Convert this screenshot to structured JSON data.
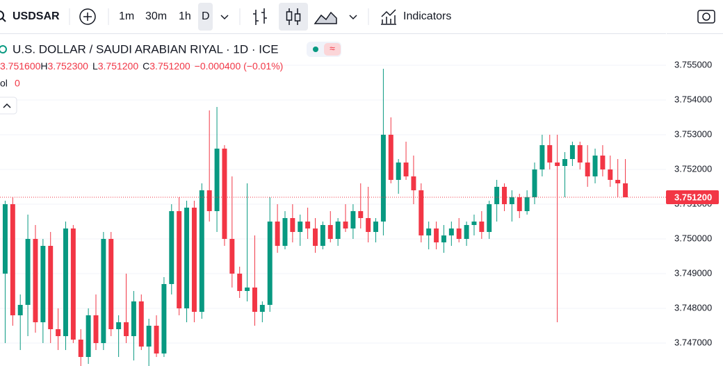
{
  "toolbar": {
    "symbol": "USDSAR",
    "intervals": [
      "1m",
      "30m",
      "1h",
      "D"
    ],
    "indicators": "Indicators"
  },
  "legend": {
    "title": "U.S. DOLLAR / SAUDI ARABIAN RIYAL · 1D · ICE",
    "open": "3.751600",
    "high_label": "H",
    "high": "3.752300",
    "low_label": "L",
    "low": "3.751200",
    "close_label": "C",
    "close": "3.751200",
    "change": "−0.000400 (−0.01%)",
    "volume_label": "ol",
    "volume": "0"
  },
  "chart_data": {
    "type": "candlestick",
    "up_color": "#089981",
    "down_color": "#f23645",
    "ylim": [
      3.74634,
      3.75592
    ],
    "yticks": [
      {
        "value": 3.755,
        "label": "3.755000"
      },
      {
        "value": 3.754,
        "label": "3.754000"
      },
      {
        "value": 3.753,
        "label": "3.753000"
      },
      {
        "value": 3.752,
        "label": "3.752000"
      },
      {
        "value": 3.751,
        "label": "3.751000"
      },
      {
        "value": 3.75,
        "label": "3.750000"
      },
      {
        "value": 3.749,
        "label": "3.749000"
      },
      {
        "value": 3.748,
        "label": "3.748000"
      },
      {
        "value": 3.747,
        "label": "3.747000"
      }
    ],
    "last_price": {
      "value": 3.7512,
      "label": "3.751200"
    },
    "candles": [
      [
        3.749,
        3.7511,
        3.747,
        3.751
      ],
      [
        3.751,
        3.7512,
        3.7475,
        3.7478
      ],
      [
        3.7478,
        3.7484,
        3.7468,
        3.7481
      ],
      [
        3.7481,
        3.7507,
        3.7472,
        3.75
      ],
      [
        3.75,
        3.7504,
        3.7473,
        3.7476
      ],
      [
        3.7476,
        3.75,
        3.747,
        3.7498
      ],
      [
        3.7498,
        3.7502,
        3.747,
        3.7474
      ],
      [
        3.7474,
        3.748,
        3.7468,
        3.7472
      ],
      [
        3.7472,
        3.7505,
        3.7468,
        3.7503
      ],
      [
        3.7503,
        3.7504,
        3.747,
        3.7471
      ],
      [
        3.7471,
        3.7474,
        3.7463,
        3.7466
      ],
      [
        3.7466,
        3.748,
        3.7464,
        3.7478
      ],
      [
        3.7478,
        3.7484,
        3.7468,
        3.747
      ],
      [
        3.747,
        3.7502,
        3.7468,
        3.75
      ],
      [
        3.75,
        3.7502,
        3.7472,
        3.7474
      ],
      [
        3.7474,
        3.7478,
        3.7466,
        3.7476
      ],
      [
        3.7476,
        3.749,
        3.747,
        3.7472
      ],
      [
        3.7472,
        3.7485,
        3.7465,
        3.7482
      ],
      [
        3.7482,
        3.7484,
        3.7468,
        3.7469
      ],
      [
        3.7469,
        3.7477,
        3.7463,
        3.7475
      ],
      [
        3.7475,
        3.7478,
        3.7466,
        3.7467
      ],
      [
        3.7467,
        3.7489,
        3.7466,
        3.7487
      ],
      [
        3.7487,
        3.751,
        3.7484,
        3.7508
      ],
      [
        3.7508,
        3.7512,
        3.7478,
        3.748
      ],
      [
        3.748,
        3.7511,
        3.7476,
        3.7509
      ],
      [
        3.7509,
        3.7511,
        3.7476,
        3.7479
      ],
      [
        3.7479,
        3.7516,
        3.7477,
        3.7514
      ],
      [
        3.7514,
        3.7537,
        3.7505,
        3.7508
      ],
      [
        3.7508,
        3.7538,
        3.7502,
        3.7526
      ],
      [
        3.7526,
        3.7527,
        3.7498,
        3.75
      ],
      [
        3.75,
        3.7518,
        3.7486,
        3.749
      ],
      [
        3.749,
        3.7492,
        3.7483,
        3.7485
      ],
      [
        3.7485,
        3.7516,
        3.7482,
        3.7486
      ],
      [
        3.7486,
        3.7501,
        3.7475,
        3.7479
      ],
      [
        3.7479,
        3.7482,
        3.7476,
        3.7481
      ],
      [
        3.7481,
        3.7512,
        3.7479,
        3.7505
      ],
      [
        3.7505,
        3.751,
        3.7496,
        3.7498
      ],
      [
        3.7498,
        3.7508,
        3.7497,
        3.7506
      ],
      [
        3.7506,
        3.751,
        3.7499,
        3.7502
      ],
      [
        3.7502,
        3.7507,
        3.7498,
        3.7505
      ],
      [
        3.7505,
        3.7509,
        3.75,
        3.7503
      ],
      [
        3.7503,
        3.7506,
        3.7496,
        3.7498
      ],
      [
        3.7498,
        3.7505,
        3.7497,
        3.7504
      ],
      [
        3.7504,
        3.7508,
        3.7499,
        3.75
      ],
      [
        3.75,
        3.7506,
        3.7498,
        3.7505
      ],
      [
        3.7505,
        3.751,
        3.7502,
        3.7503
      ],
      [
        3.7503,
        3.751,
        3.75,
        3.7508
      ],
      [
        3.7508,
        3.7516,
        3.7503,
        3.7506
      ],
      [
        3.7506,
        3.7515,
        3.7499,
        3.7502
      ],
      [
        3.7502,
        3.7506,
        3.7499,
        3.7505
      ],
      [
        3.7505,
        3.7549,
        3.7501,
        3.753
      ],
      [
        3.753,
        3.7535,
        3.7516,
        3.7517
      ],
      [
        3.7517,
        3.7523,
        3.7513,
        3.7522
      ],
      [
        3.7522,
        3.7528,
        3.7517,
        3.7518
      ],
      [
        3.7518,
        3.7524,
        3.751,
        3.7514
      ],
      [
        3.7514,
        3.7516,
        3.7499,
        3.7501
      ],
      [
        3.7501,
        3.7505,
        3.7497,
        3.7503
      ],
      [
        3.7503,
        3.7505,
        3.7497,
        3.7499
      ],
      [
        3.7499,
        3.7504,
        3.7496,
        3.7501
      ],
      [
        3.7501,
        3.7505,
        3.7498,
        3.7503
      ],
      [
        3.7503,
        3.7506,
        3.7499,
        3.75
      ],
      [
        3.75,
        3.7505,
        3.7498,
        3.7504
      ],
      [
        3.7504,
        3.7507,
        3.7501,
        3.7505
      ],
      [
        3.7505,
        3.7508,
        3.75,
        3.7502
      ],
      [
        3.7502,
        3.7511,
        3.75,
        3.751
      ],
      [
        3.751,
        3.7517,
        3.7505,
        3.7515
      ],
      [
        3.7515,
        3.7516,
        3.7508,
        3.751
      ],
      [
        3.751,
        3.7514,
        3.7505,
        3.7512
      ],
      [
        3.7512,
        3.7513,
        3.7506,
        3.7508
      ],
      [
        3.7508,
        3.7514,
        3.7507,
        3.7512
      ],
      [
        3.7512,
        3.7522,
        3.751,
        3.752
      ],
      [
        3.752,
        3.753,
        3.7518,
        3.7527
      ],
      [
        3.7527,
        3.753,
        3.752,
        3.7522
      ],
      [
        3.7522,
        3.753,
        3.7476,
        3.7521
      ],
      [
        3.7521,
        3.7525,
        3.7512,
        3.7523
      ],
      [
        3.7523,
        3.7528,
        3.7521,
        3.7527
      ],
      [
        3.7527,
        3.7528,
        3.752,
        3.7522
      ],
      [
        3.7522,
        3.7527,
        3.7515,
        3.7518
      ],
      [
        3.7518,
        3.7526,
        3.7516,
        3.7524
      ],
      [
        3.7524,
        3.7527,
        3.7518,
        3.752
      ],
      [
        3.752,
        3.7524,
        3.7515,
        3.7517
      ],
      [
        3.7517,
        3.7523,
        3.7512,
        3.7516
      ],
      [
        3.7516,
        3.7523,
        3.7512,
        3.7512
      ]
    ]
  }
}
